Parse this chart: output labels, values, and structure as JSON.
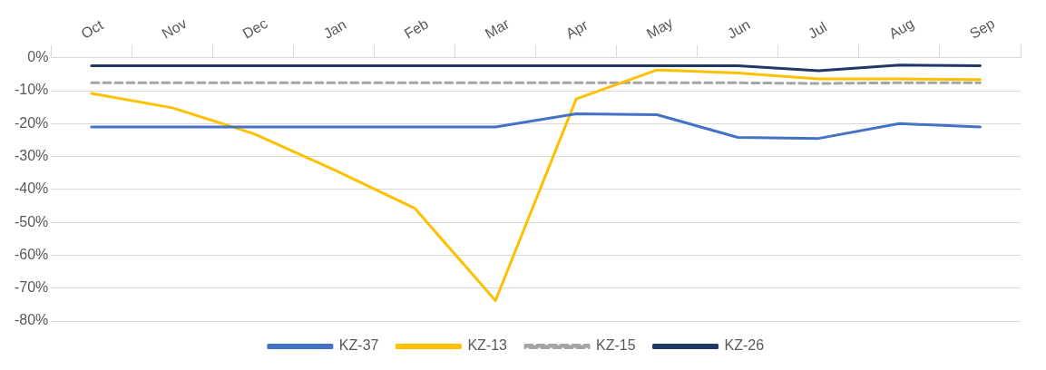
{
  "chart_data": {
    "type": "line",
    "categories": [
      "Oct",
      "Nov",
      "Dec",
      "Jan",
      "Feb",
      "Mar",
      "Apr",
      "May",
      "Jun",
      "Jul",
      "Aug",
      "Sep"
    ],
    "series": [
      {
        "name": "KZ-37",
        "color": "#4472c4",
        "values": [
          -21,
          -21,
          -21,
          -21,
          -21,
          -21,
          -17,
          -17.3,
          -24.2,
          -24.5,
          -20,
          -21
        ]
      },
      {
        "name": "KZ-13",
        "color": "#ffc000",
        "values": [
          -10.8,
          -15.2,
          -23,
          -34,
          -45.7,
          -73.8,
          -12.5,
          -3.7,
          -4.6,
          -6.4,
          -6.4,
          -6.6
        ]
      },
      {
        "name": "KZ-15",
        "color": "#a5a5a5",
        "line_style": "dashed",
        "values": [
          -7.6,
          -7.6,
          -7.6,
          -7.6,
          -7.6,
          -7.6,
          -7.6,
          -7.6,
          -7.6,
          -7.8,
          -7.6,
          -7.6
        ]
      },
      {
        "name": "KZ-26",
        "color": "#203864",
        "values": [
          -2.4,
          -2.4,
          -2.4,
          -2.4,
          -2.4,
          -2.4,
          -2.4,
          -2.4,
          -2.4,
          -3.9,
          -2.2,
          -2.4
        ]
      }
    ],
    "ylim": [
      -80,
      0
    ],
    "yticks": [
      {
        "value": 0,
        "label": "0%"
      },
      {
        "value": -10,
        "label": "-10%"
      },
      {
        "value": -20,
        "label": "-20%"
      },
      {
        "value": -30,
        "label": "-30%"
      },
      {
        "value": -40,
        "label": "-40%"
      },
      {
        "value": -50,
        "label": "-50%"
      },
      {
        "value": -60,
        "label": "-60%"
      },
      {
        "value": -70,
        "label": "-70%"
      },
      {
        "value": -80,
        "label": "-80%"
      }
    ],
    "grid": "y",
    "legend": "bottom",
    "marker": "none"
  }
}
